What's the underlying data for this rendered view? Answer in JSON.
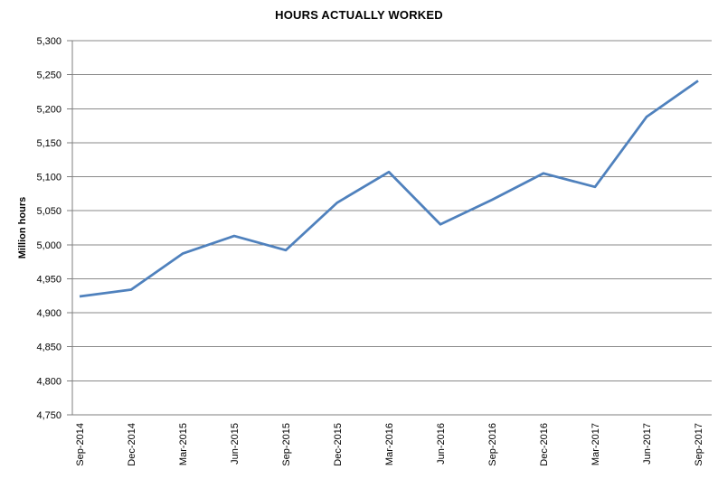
{
  "chart_data": {
    "type": "line",
    "title": "HOURS ACTUALLY WORKED",
    "xlabel": "",
    "ylabel": "Million hours",
    "categories": [
      "Sep-2014",
      "Dec-2014",
      "Mar-2015",
      "Jun-2015",
      "Sep-2015",
      "Dec-2015",
      "Mar-2016",
      "Jun-2016",
      "Sep-2016",
      "Dec-2016",
      "Mar-2017",
      "Jun-2017",
      "Sep-2017"
    ],
    "values": [
      4924,
      4934,
      4987,
      5013,
      4992,
      5062,
      5107,
      5030,
      5066,
      5105,
      5085,
      5188,
      5241
    ],
    "ylim": [
      4750,
      5300
    ],
    "ytick_step": 50,
    "grid": true,
    "legend_position": "none",
    "colors": {
      "line": "#4F81BD",
      "grid": "#8A8A8A",
      "axis": "#7F7F7F",
      "text": "#000000",
      "background": "#FFFFFF"
    }
  }
}
